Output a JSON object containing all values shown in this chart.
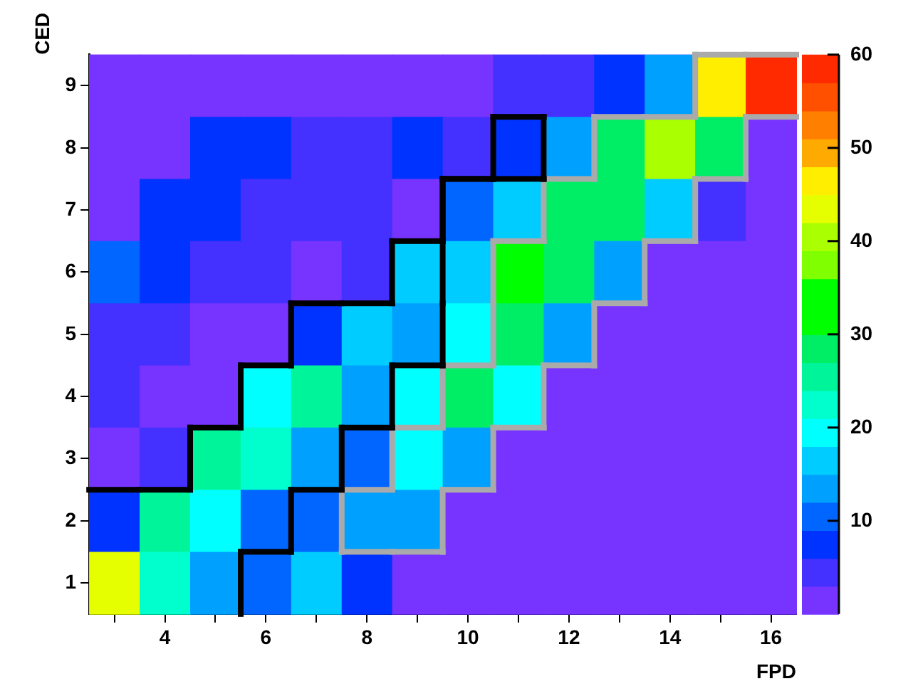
{
  "chart_data": {
    "type": "heatmap",
    "xlabel": "FPD",
    "ylabel": "CED",
    "categories": [
      null,
      "4",
      null,
      "6",
      null,
      "8",
      null,
      "10",
      null,
      "12",
      null,
      "14",
      null,
      "16"
    ],
    "y_categories": [
      "9",
      "8",
      "7",
      "6",
      "5",
      "4",
      "3",
      "2",
      "1"
    ],
    "cells": [
      [
        2,
        2,
        2,
        2,
        2,
        2,
        2,
        2,
        5,
        5,
        8,
        14,
        47,
        59
      ],
      [
        2,
        2,
        8,
        8,
        5,
        5,
        8,
        5,
        8,
        14,
        28,
        41,
        28,
        2
      ],
      [
        2,
        8,
        8,
        5,
        5,
        5,
        2,
        11,
        17,
        28,
        28,
        17,
        5,
        2
      ],
      [
        11,
        8,
        5,
        5,
        2,
        5,
        17,
        17,
        33,
        28,
        14,
        2,
        2,
        2
      ],
      [
        5,
        5,
        2,
        2,
        8,
        17,
        14,
        20,
        28,
        14,
        2,
        2,
        2,
        2
      ],
      [
        5,
        2,
        2,
        20,
        26,
        14,
        20,
        28,
        20,
        2,
        2,
        2,
        2,
        2
      ],
      [
        2,
        5,
        26,
        23,
        14,
        11,
        20,
        14,
        2,
        2,
        2,
        2,
        2,
        2
      ],
      [
        8,
        26,
        20,
        11,
        11,
        14,
        14,
        2,
        2,
        2,
        2,
        2,
        2,
        2
      ],
      [
        44,
        23,
        14,
        11,
        17,
        8,
        2,
        2,
        2,
        2,
        2,
        2,
        2,
        2
      ]
    ],
    "clim": [
      0,
      60
    ],
    "cticks": [
      10,
      20,
      30,
      40,
      50,
      60
    ]
  }
}
